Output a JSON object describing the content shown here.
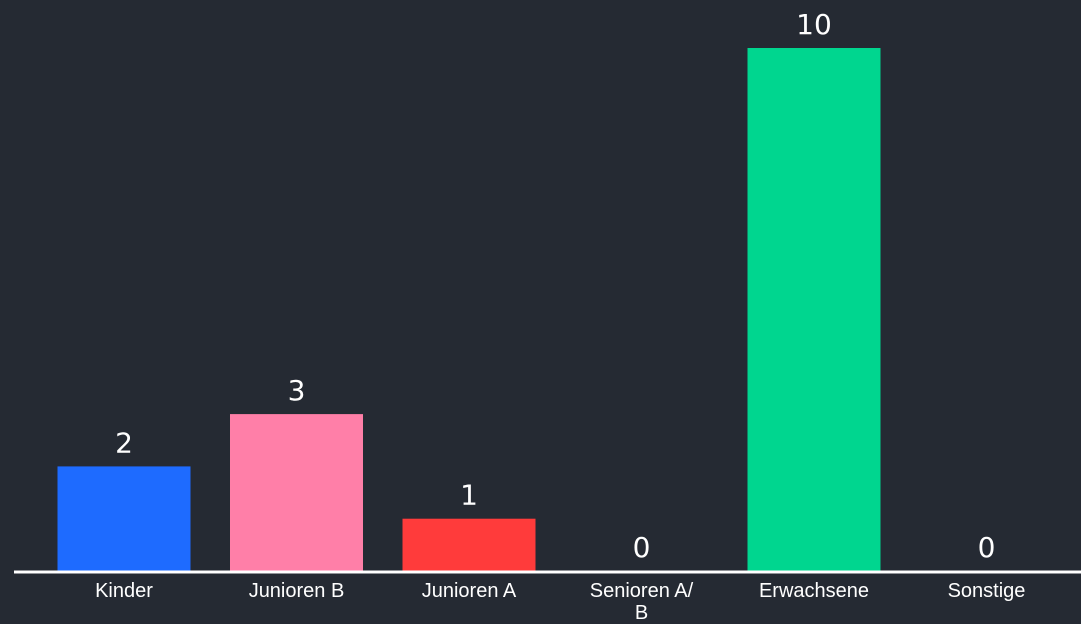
{
  "chart_data": {
    "type": "bar",
    "categories": [
      "Kinder",
      "Junioren B",
      "Junioren A",
      "Senioren A/ B",
      "Erwachsene",
      "Sonstige"
    ],
    "category_lines": [
      [
        "Kinder"
      ],
      [
        "Junioren B"
      ],
      [
        "Junioren A"
      ],
      [
        "Senioren A/",
        "B"
      ],
      [
        "Erwachsene"
      ],
      [
        "Sonstige"
      ]
    ],
    "values": [
      2,
      3,
      1,
      0,
      10,
      0
    ],
    "value_labels": [
      "2",
      "3",
      "1",
      "0",
      "10",
      "0"
    ],
    "colors": [
      "#1e6bff",
      "#ff7fa8",
      "#ff3b3b",
      "#ffffff",
      "#00d68f",
      "#ffffff"
    ],
    "ylim": [
      0,
      10
    ],
    "grid": false,
    "legend": "none",
    "title": "",
    "xlabel": "",
    "ylabel": ""
  },
  "theme": {
    "background": "#252a33",
    "text": "#ffffff",
    "axis": "#ffffff"
  }
}
